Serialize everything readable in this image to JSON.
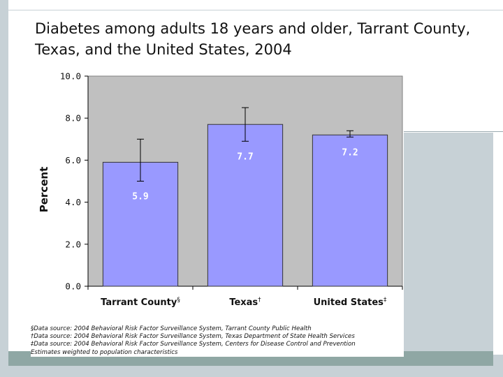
{
  "title": "Diabetes among adults 18 years and older, Tarrant County, Texas, and the United States, 2004",
  "colors": {
    "plot_bg": "#c0c0c0",
    "bar_fill": "#9999ff",
    "bar_stroke": "#333333",
    "frame": "#c7d1d6",
    "frame_dark": "#8fa7a4"
  },
  "chart_data": {
    "type": "bar",
    "title": "Diabetes among adults 18 years and older, Tarrant County, Texas, and the United States, 2004",
    "xlabel": "",
    "ylabel": "Percent",
    "ylim": [
      0,
      10
    ],
    "yticks": [
      0,
      2,
      4,
      6,
      8,
      10
    ],
    "ytick_labels": [
      "0.0",
      "2.0",
      "4.0",
      "6.0",
      "8.0",
      "10.0"
    ],
    "grid": false,
    "categories": [
      {
        "label": "Tarrant County",
        "mark": "§"
      },
      {
        "label": "Texas",
        "mark": "†"
      },
      {
        "label": "United States",
        "mark": "‡"
      }
    ],
    "values": [
      5.9,
      7.7,
      7.2
    ],
    "value_labels": [
      "5.9",
      "7.7",
      "7.2"
    ],
    "error_low": [
      5.0,
      6.9,
      7.1
    ],
    "error_high": [
      7.0,
      8.5,
      7.4
    ]
  },
  "footnotes": [
    "§Data source: 2004 Behavioral Risk Factor Surveillance System, Tarrant County Public Health",
    "†Data source: 2004 Behavioral Risk Factor Surveillance System, Texas Department of State Health Services",
    "‡Data source: 2004 Behavioral Risk Factor Surveillance System, Centers for Disease Control and Prevention",
    "Estimates weighted to population characteristics"
  ]
}
